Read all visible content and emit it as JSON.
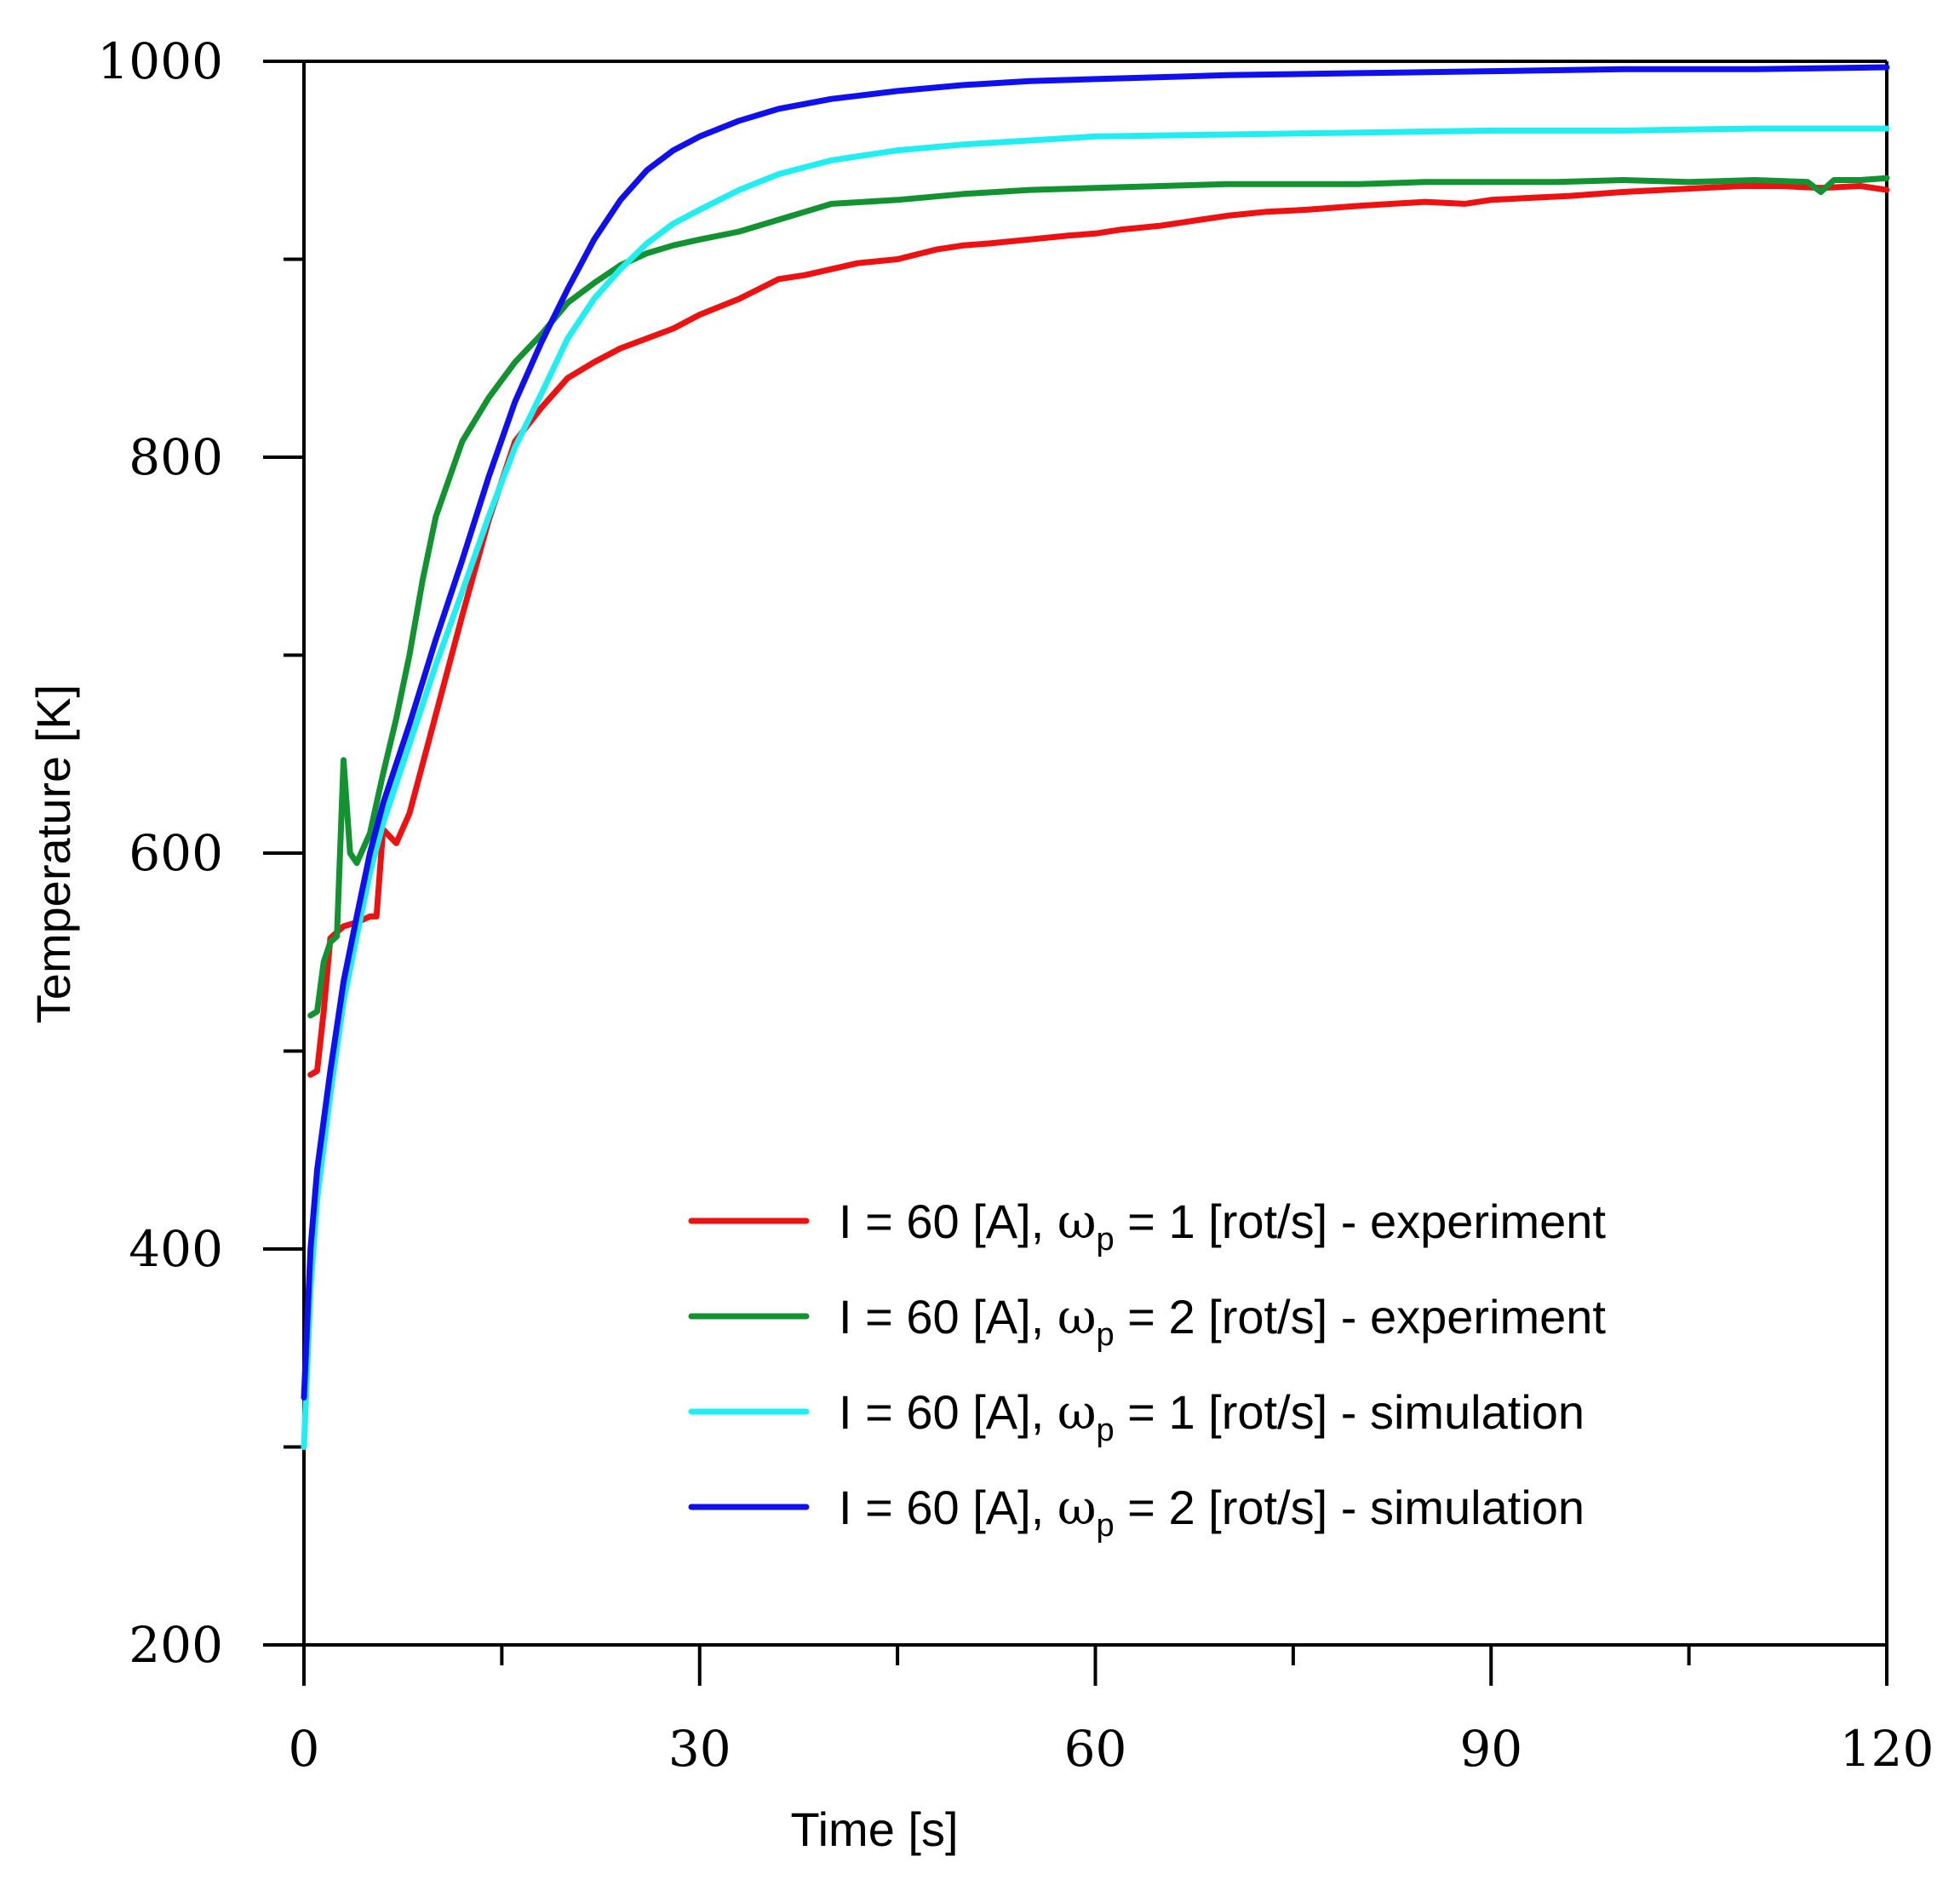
{
  "chart_data": {
    "type": "line",
    "title": "",
    "xlabel": "Time [s]",
    "ylabel": "Temperature [K]",
    "xlim": [
      0,
      120
    ],
    "ylim": [
      200,
      1000
    ],
    "x_major_ticks": [
      0,
      30,
      60,
      90,
      120
    ],
    "x_tick_labels": [
      "0",
      "30",
      "60",
      "90",
      "120"
    ],
    "x_minor_ticks": [
      15,
      45,
      75,
      105
    ],
    "y_major_ticks": [
      200,
      400,
      600,
      800,
      1000
    ],
    "y_tick_labels": [
      "200",
      "400",
      "600",
      "800",
      "1000"
    ],
    "y_minor_ticks": [
      300,
      500,
      700,
      900
    ],
    "grid": false,
    "legend_position": "bottom-right",
    "series": [
      {
        "name": "I = 60 [A], ωp = 1 [rot/s] - experiment",
        "legend": {
          "prefix": "I = 60 [A], ",
          "greek": "ω",
          "sub": "p",
          "suffix": " = 1 [rot/s] - experiment"
        },
        "color": "#ee1111",
        "x": [
          0.5,
          1,
          1.5,
          2,
          2.5,
          3,
          4,
          5,
          5.5,
          6,
          7,
          8,
          9,
          10,
          12,
          14,
          16,
          18,
          20,
          22,
          24,
          26,
          28,
          30,
          33,
          36,
          38,
          40,
          42,
          45,
          48,
          50,
          52,
          55,
          58,
          60,
          62,
          65,
          68,
          70,
          73,
          76,
          80,
          85,
          88,
          90,
          93,
          96,
          100,
          103,
          106,
          109,
          112,
          115,
          118,
          120
        ],
        "y": [
          488,
          490,
          520,
          557,
          560,
          563,
          565,
          568,
          568,
          612,
          605,
          620,
          645,
          670,
          720,
          768,
          808,
          825,
          840,
          848,
          855,
          860,
          865,
          872,
          880,
          890,
          892,
          895,
          898,
          900,
          905,
          907,
          908,
          910,
          912,
          913,
          915,
          917,
          920,
          922,
          924,
          925,
          927,
          929,
          928,
          930,
          931,
          932,
          934,
          935,
          936,
          937,
          937,
          936,
          937,
          935
        ]
      },
      {
        "name": "I = 60 [A], ωp = 2 [rot/s] - experiment",
        "legend": {
          "prefix": "I = 60 [A], ",
          "greek": "ω",
          "sub": "p",
          "suffix": " = 2 [rot/s] - experiment"
        },
        "color": "#139232",
        "x": [
          0.5,
          1,
          1.5,
          2,
          2.5,
          3,
          3.5,
          4,
          5,
          6,
          7,
          8,
          9,
          10,
          12,
          14,
          16,
          18,
          20,
          22,
          24,
          26,
          28,
          30,
          33,
          36,
          38,
          40,
          45,
          50,
          55,
          60,
          65,
          70,
          75,
          80,
          85,
          90,
          95,
          100,
          105,
          110,
          114,
          115,
          116,
          118,
          120
        ],
        "y": [
          518,
          520,
          545,
          555,
          558,
          647,
          600,
          595,
          610,
          640,
          668,
          700,
          738,
          770,
          808,
          830,
          848,
          862,
          878,
          888,
          897,
          903,
          907,
          910,
          914,
          920,
          924,
          928,
          930,
          933,
          935,
          936,
          937,
          938,
          938,
          938,
          939,
          939,
          939,
          940,
          939,
          940,
          939,
          934,
          940,
          940,
          941
        ]
      },
      {
        "name": "I = 60 [A], ωp = 1 [rot/s] - simulation",
        "legend": {
          "prefix": "I = 60 [A], ",
          "greek": "ω",
          "sub": "p",
          "suffix": " = 1 [rot/s] - simulation"
        },
        "color": "#22eef2",
        "x": [
          0,
          0.5,
          1,
          2,
          3,
          4,
          5,
          6,
          8,
          10,
          12,
          14,
          16,
          18,
          20,
          22,
          24,
          26,
          28,
          30,
          33,
          36,
          40,
          45,
          50,
          55,
          60,
          70,
          80,
          90,
          100,
          110,
          120
        ],
        "y": [
          300,
          380,
          425,
          478,
          525,
          558,
          590,
          615,
          655,
          695,
          732,
          770,
          805,
          832,
          860,
          880,
          895,
          908,
          918,
          925,
          935,
          943,
          950,
          955,
          958,
          960,
          962,
          963,
          964,
          965,
          965,
          966,
          966
        ]
      },
      {
        "name": "I = 60 [A], ωp = 2 [rot/s] - simulation",
        "legend": {
          "prefix": "I = 60 [A], ",
          "greek": "ω",
          "sub": "p",
          "suffix": " = 2 [rot/s] - simulation"
        },
        "color": "#1010ee",
        "x": [
          0,
          0.5,
          1,
          2,
          3,
          4,
          5,
          6,
          8,
          10,
          12,
          14,
          16,
          18,
          20,
          22,
          24,
          26,
          28,
          30,
          33,
          36,
          40,
          45,
          50,
          55,
          60,
          70,
          80,
          90,
          100,
          110,
          120
        ],
        "y": [
          325,
          400,
          440,
          490,
          535,
          568,
          600,
          625,
          665,
          708,
          748,
          790,
          828,
          858,
          885,
          910,
          930,
          945,
          955,
          962,
          970,
          976,
          981,
          985,
          988,
          990,
          991,
          993,
          994,
          995,
          996,
          996,
          997
        ]
      }
    ]
  }
}
